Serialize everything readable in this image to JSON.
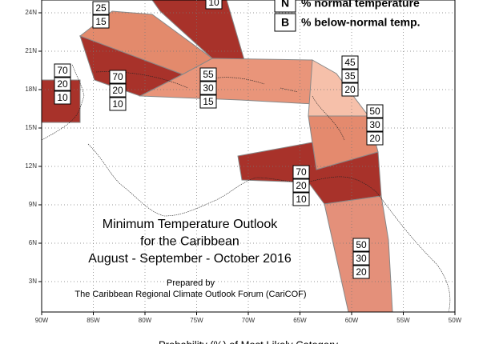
{
  "map": {
    "title_lines": [
      "Minimum Temperature Outlook",
      "for the Caribbean",
      "August - September - October 2016"
    ],
    "prepared_by": "Prepared by",
    "organization": "The Caribbean Regional Climate Outlook Forum (CariCOF)",
    "footer": "Probability (%) of Most Likely Category",
    "legend": [
      {
        "key": "N",
        "text": "% normal temperature"
      },
      {
        "key": "B",
        "text": "% below-normal temp."
      }
    ],
    "lon_labels": [
      "90W",
      "85W",
      "80W",
      "75W",
      "70W",
      "65W",
      "60W",
      "55W",
      "50W"
    ],
    "lat_labels": [
      "24N",
      "21N",
      "18N",
      "15N",
      "12N",
      "9N",
      "6N",
      "3N"
    ],
    "regions": [
      {
        "probabilities": [
          "25",
          "15"
        ]
      },
      {
        "probabilities": [
          "10"
        ]
      },
      {
        "probabilities": [
          "70",
          "20",
          "10"
        ]
      },
      {
        "probabilities": [
          "70",
          "20",
          "10"
        ]
      },
      {
        "probabilities": [
          "55",
          "30",
          "15"
        ]
      },
      {
        "probabilities": [
          "45",
          "35",
          "20"
        ]
      },
      {
        "probabilities": [
          "50",
          "30",
          "20"
        ]
      },
      {
        "probabilities": [
          "70",
          "20",
          "10"
        ]
      },
      {
        "probabilities": [
          "50",
          "30",
          "20"
        ]
      }
    ]
  }
}
